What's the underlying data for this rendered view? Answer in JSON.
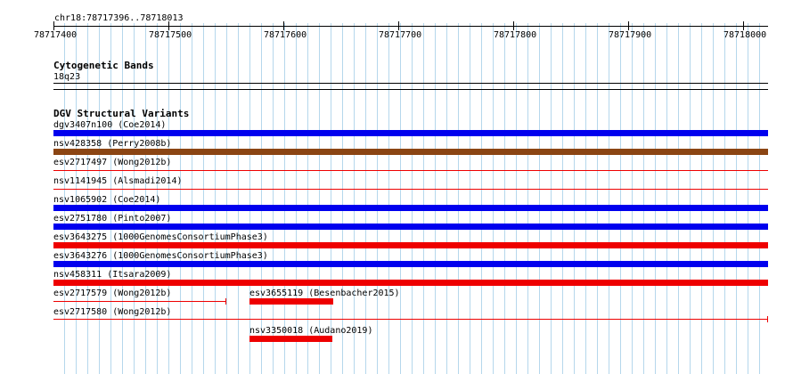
{
  "ruler": {
    "location": "chr18:78717396..78718013",
    "ticks": [
      "78717400",
      "78717500",
      "78717600",
      "78717700",
      "78717800",
      "78717900",
      "78718000"
    ]
  },
  "cytoband": {
    "title": "Cytogenetic Bands",
    "band": "18q23"
  },
  "dgv": {
    "title": "DGV Structural Variants",
    "variants": [
      {
        "label": "dgv3407n100 (Coe2014)",
        "color": "#0000ee"
      },
      {
        "label": "nsv428358 (Perry2008b)",
        "color": "#8b4513"
      },
      {
        "label": "esv2717497 (Wong2012b)",
        "color": "#ee0000"
      },
      {
        "label": "nsv1141945 (Alsmadi2014)",
        "color": "#ee0000"
      },
      {
        "label": "nsv1065902 (Coe2014)",
        "color": "#0000ee"
      },
      {
        "label": "esv2751780 (Pinto2007)",
        "color": "#0000ee"
      },
      {
        "label": "esv3643275 (1000GenomesConsortiumPhase3)",
        "color": "#ee0000"
      },
      {
        "label": "esv3643276 (1000GenomesConsortiumPhase3)",
        "color": "#0000ee"
      },
      {
        "label": "nsv458311 (Itsara2009)",
        "color": "#ee0000"
      },
      {
        "label": "esv2717579 (Wong2012b)",
        "color": "#ee0000"
      },
      {
        "label": "esv3655119 (Besenbacher2015)",
        "color": "#ee0000"
      },
      {
        "label": "esv2717580 (Wong2012b)",
        "color": "#ee0000"
      },
      {
        "label": "nsv3350018 (Audano2019)",
        "color": "#ee0000"
      }
    ]
  }
}
